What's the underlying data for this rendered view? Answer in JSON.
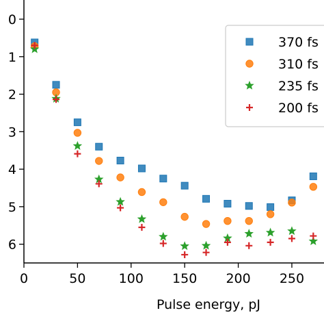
{
  "chart_data": {
    "type": "scatter",
    "xlabel": "Pulse energy, pJ",
    "ylabel": "",
    "xlim": [
      0,
      280
    ],
    "ylim": [
      6.5,
      0
    ],
    "y_inverted": true,
    "grid": false,
    "legend_placement": "top-right",
    "xticks": [
      0,
      50,
      100,
      150,
      200,
      250
    ],
    "yticks": [
      0,
      1,
      2,
      3,
      4,
      5,
      6
    ],
    "x": [
      10,
      30,
      50,
      70,
      90,
      110,
      130,
      150,
      170,
      190,
      210,
      230,
      250,
      270
    ],
    "series": [
      {
        "name": "370 fs",
        "marker": "square",
        "color": "#1f77b4",
        "y": [
          0.62,
          1.75,
          2.75,
          3.4,
          3.77,
          3.98,
          4.25,
          4.44,
          4.79,
          4.92,
          4.98,
          5.01,
          4.83,
          4.19
        ]
      },
      {
        "name": "310 fs",
        "marker": "circle",
        "color": "#ff7f0e",
        "y": [
          0.72,
          1.95,
          3.03,
          3.78,
          4.22,
          4.61,
          4.88,
          5.27,
          5.46,
          5.38,
          5.38,
          5.2,
          4.89,
          4.47
        ]
      },
      {
        "name": "235 fs",
        "marker": "star",
        "color": "#2ca02c",
        "y": [
          0.8,
          2.12,
          3.38,
          4.27,
          4.87,
          5.33,
          5.8,
          6.05,
          6.04,
          5.84,
          5.72,
          5.69,
          5.65,
          5.92
        ]
      },
      {
        "name": "200 fs",
        "marker": "plus",
        "color": "#d62728",
        "y": [
          0.7,
          2.14,
          3.59,
          4.39,
          5.03,
          5.55,
          5.98,
          6.28,
          6.22,
          5.95,
          6.04,
          5.95,
          5.85,
          5.78
        ]
      }
    ]
  }
}
